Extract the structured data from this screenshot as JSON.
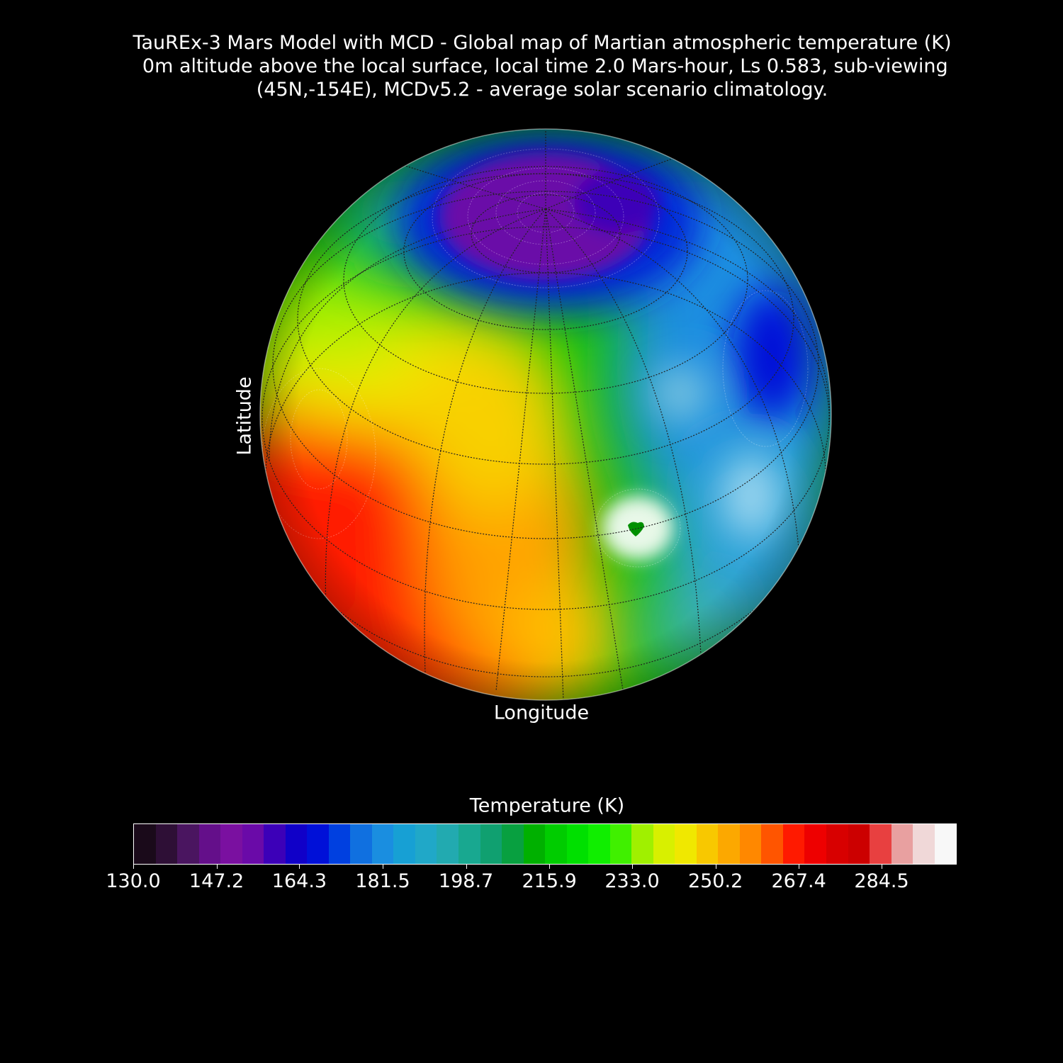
{
  "figure": {
    "title_lines": [
      "TauREx-3 Mars Model with MCD - Global map of Martian atmospheric temperature (K)",
      " 0m altitude above the local surface, local time 2.0 Mars-hour, Ls 0.583, sub-viewing",
      "(45N,-154E), MCDv5.2 - average solar scenario climatology."
    ],
    "xlabel": "Longitude",
    "ylabel": "Latitude"
  },
  "map_data": {
    "projection": "orthographic",
    "sub_viewing_lat": 45,
    "sub_viewing_lon": -154,
    "variable": "atmospheric temperature",
    "units": "K",
    "features": [
      {
        "name": "north polar cold cap",
        "lat": 88,
        "lon": -160,
        "temperature_K": 152
      },
      {
        "name": "eastern cold region",
        "lat": 38,
        "lon": -95,
        "temperature_K": 170
      },
      {
        "name": "western warm region",
        "lat": 5,
        "lon": -215,
        "temperature_K": 288
      },
      {
        "name": "south-west warm region",
        "lat": -5,
        "lon": -190,
        "temperature_K": 280
      },
      {
        "name": "central warm band",
        "lat": 25,
        "lon": -175,
        "temperature_K": 252
      },
      {
        "name": "warm spot",
        "lat": 5,
        "lon": -125,
        "temperature_K": 295
      },
      {
        "name": "hot spot center",
        "lat": 5,
        "lon": -124,
        "temperature_K": 222
      }
    ]
  },
  "colorbar": {
    "label": "Temperature (K)",
    "vmin": 130.0,
    "vmax": 300.0,
    "ticks": [
      "130.0",
      "147.2",
      "164.3",
      "181.5",
      "198.7",
      "215.9",
      "233.0",
      "250.2",
      "267.4",
      "284.5"
    ],
    "colors": [
      "#1a0a1a",
      "#2e0f36",
      "#4a1560",
      "#640f8a",
      "#7a10a0",
      "#6a0aa8",
      "#3c00b8",
      "#1000c8",
      "#0010d8",
      "#0040e0",
      "#1070e0",
      "#1a8ee0",
      "#17a0d4",
      "#20a8c8",
      "#22aab0",
      "#18a890",
      "#10a070",
      "#08a040",
      "#00b000",
      "#00cc00",
      "#00e000",
      "#10ee00",
      "#40f000",
      "#a0f000",
      "#d8f000",
      "#f0e800",
      "#f8c800",
      "#fca800",
      "#ff8800",
      "#ff5500",
      "#ff1a00",
      "#ee0000",
      "#d80000",
      "#cc0000",
      "#e84040",
      "#e8a0a0",
      "#f0d8d8",
      "#f8f8f8"
    ]
  },
  "colors": {
    "background": "#000000",
    "text": "#ffffff",
    "graticule": "#222222"
  }
}
